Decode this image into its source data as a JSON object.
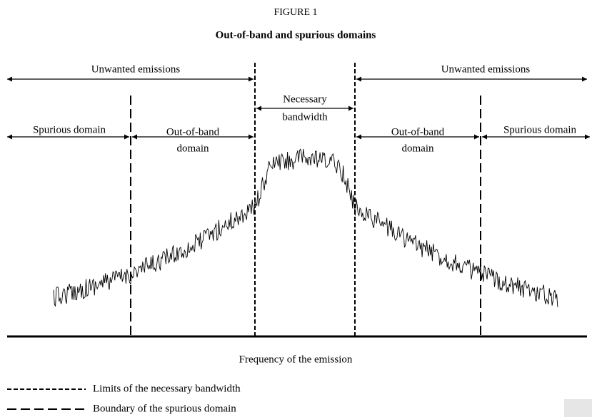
{
  "figure": {
    "number": "FIGURE 1",
    "title": "Out-of-band and spurious domains"
  },
  "top_labels": {
    "left": "Unwanted emissions",
    "right": "Unwanted emissions"
  },
  "domains": {
    "necessary": [
      "Necessary",
      "bandwidth"
    ],
    "spurious_left": "Spurious domain",
    "out_of_band_left": [
      "Out-of-band",
      "domain"
    ],
    "out_of_band_right": [
      "Out-of-band",
      "domain"
    ],
    "spurious_right": "Spurious domain"
  },
  "axis_label": "Frequency of the emission",
  "legend": [
    "Limits of the necessary bandwidth",
    "Boundary of the spurious domain"
  ]
}
